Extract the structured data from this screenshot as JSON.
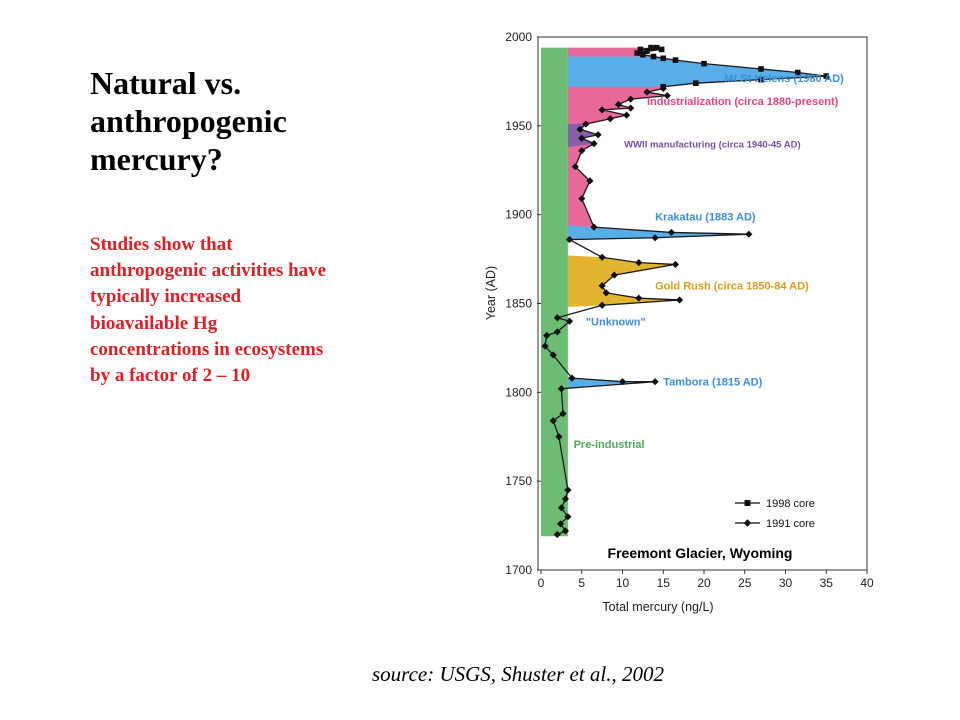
{
  "slide": {
    "title": "Natural vs. anthropogenic mercury?",
    "body": "Studies show that anthropogenic activities have typically increased bioavailable Hg concentrations in ecosystems by a factor of 2 – 10",
    "source": "source: USGS, Shuster et al., 2002"
  },
  "chart_data": {
    "type": "line",
    "xlabel": "Total mercury (ng/L)",
    "ylabel": "Year (AD)",
    "xlim": [
      0,
      40
    ],
    "ylim": [
      1700,
      2000
    ],
    "xticks": [
      "0",
      "5",
      "10",
      "15",
      "20",
      "25",
      "30",
      "35",
      "40"
    ],
    "yticks": [
      "1700",
      "1750",
      "1800",
      "1850",
      "1900",
      "1950",
      "2000"
    ],
    "grid": false,
    "legend_position": "bottom-right",
    "location_label": "Freemont Glacier, Wyoming",
    "baseline_band": {
      "x": [
        0,
        3.3
      ],
      "y": [
        1719,
        1994
      ],
      "color": "#6cbd73"
    },
    "series": [
      {
        "name": "1998 core",
        "marker": "square",
        "points": [
          [
            12.2,
            1993
          ],
          [
            13.5,
            1994
          ],
          [
            14.2,
            1994
          ],
          [
            14.8,
            1993
          ],
          [
            13.0,
            1992
          ],
          [
            11.8,
            1991
          ],
          [
            12.5,
            1990
          ],
          [
            13.8,
            1989
          ],
          [
            15.0,
            1988
          ],
          [
            16.5,
            1987
          ],
          [
            20.0,
            1985
          ],
          [
            27.0,
            1982
          ],
          [
            31.5,
            1980
          ],
          [
            35.0,
            1978
          ],
          [
            27.0,
            1976
          ],
          [
            19.0,
            1974
          ],
          [
            15.0,
            1972
          ]
        ]
      },
      {
        "name": "1991 core",
        "marker": "diamond",
        "points": [
          [
            15.0,
            1971
          ],
          [
            13.0,
            1969
          ],
          [
            15.5,
            1967
          ],
          [
            11.0,
            1965
          ],
          [
            9.5,
            1962
          ],
          [
            11.0,
            1960
          ],
          [
            7.5,
            1959
          ],
          [
            10.5,
            1956
          ],
          [
            8.5,
            1954
          ],
          [
            5.5,
            1951
          ],
          [
            4.8,
            1948
          ],
          [
            7.0,
            1945
          ],
          [
            5.0,
            1943
          ],
          [
            6.5,
            1940
          ],
          [
            5.0,
            1936
          ],
          [
            4.2,
            1927
          ],
          [
            6.0,
            1919
          ],
          [
            5.0,
            1909
          ],
          [
            6.5,
            1893
          ],
          [
            16.0,
            1890
          ],
          [
            25.5,
            1889
          ],
          [
            14.0,
            1887
          ],
          [
            3.5,
            1886
          ],
          [
            7.5,
            1876
          ],
          [
            12.0,
            1873
          ],
          [
            16.5,
            1872
          ],
          [
            9.0,
            1866
          ],
          [
            7.5,
            1860
          ],
          [
            8.0,
            1856
          ],
          [
            12.0,
            1853
          ],
          [
            17.0,
            1852
          ],
          [
            7.5,
            1849
          ],
          [
            2.0,
            1842
          ],
          [
            3.5,
            1840
          ],
          [
            2.0,
            1834
          ],
          [
            0.7,
            1832
          ],
          [
            0.5,
            1826
          ],
          [
            1.5,
            1821
          ],
          [
            3.8,
            1808
          ],
          [
            10.0,
            1806
          ],
          [
            14.0,
            1806
          ],
          [
            2.5,
            1802
          ],
          [
            2.7,
            1788
          ],
          [
            1.5,
            1784
          ],
          [
            2.2,
            1775
          ],
          [
            3.3,
            1745
          ],
          [
            3.0,
            1740
          ],
          [
            2.5,
            1735
          ],
          [
            3.3,
            1730
          ],
          [
            2.4,
            1726
          ],
          [
            3.0,
            1722
          ],
          [
            2.0,
            1720
          ]
        ]
      }
    ],
    "fills": [
      {
        "label": "Mt St Helens (1980 AD)",
        "color": "#5aaee8",
        "labelColor": "#3d8ed8",
        "label_at": [
          22.5,
          1977
        ]
      },
      {
        "label": "Industrialization (circa 1880-present)",
        "color": "#e7699a",
        "labelColor": "#e5457e",
        "label_at": [
          13.0,
          1964
        ]
      },
      {
        "label": "WWII manufacturing (circa 1940-45 AD)",
        "color": "#8a5eab",
        "labelColor": "#7c4aa3",
        "label_at": [
          10.2,
          1940
        ]
      },
      {
        "label": "Krakatau (1883 AD)",
        "color": "#5aaee8",
        "labelColor": "#3d8ed8",
        "label_at": [
          14.0,
          1899
        ]
      },
      {
        "label": "Gold Rush (circa 1850-84 AD)",
        "color": "#e3b42f",
        "labelColor": "#d99c1f",
        "label_at": [
          14.0,
          1860
        ]
      },
      {
        "label": "\"Unknown\"",
        "color": "#5aaee8",
        "labelColor": "#3d8ed8",
        "label_at": [
          5.5,
          1840
        ]
      },
      {
        "label": "Tambora (1815 AD)",
        "color": "#5aaee8",
        "labelColor": "#3d8ed8",
        "label_at": [
          15.0,
          1806
        ]
      },
      {
        "label": "Pre-industrial",
        "color": "#6cbd73",
        "labelColor": "#52a85a",
        "label_at": [
          4.0,
          1771
        ]
      }
    ]
  }
}
